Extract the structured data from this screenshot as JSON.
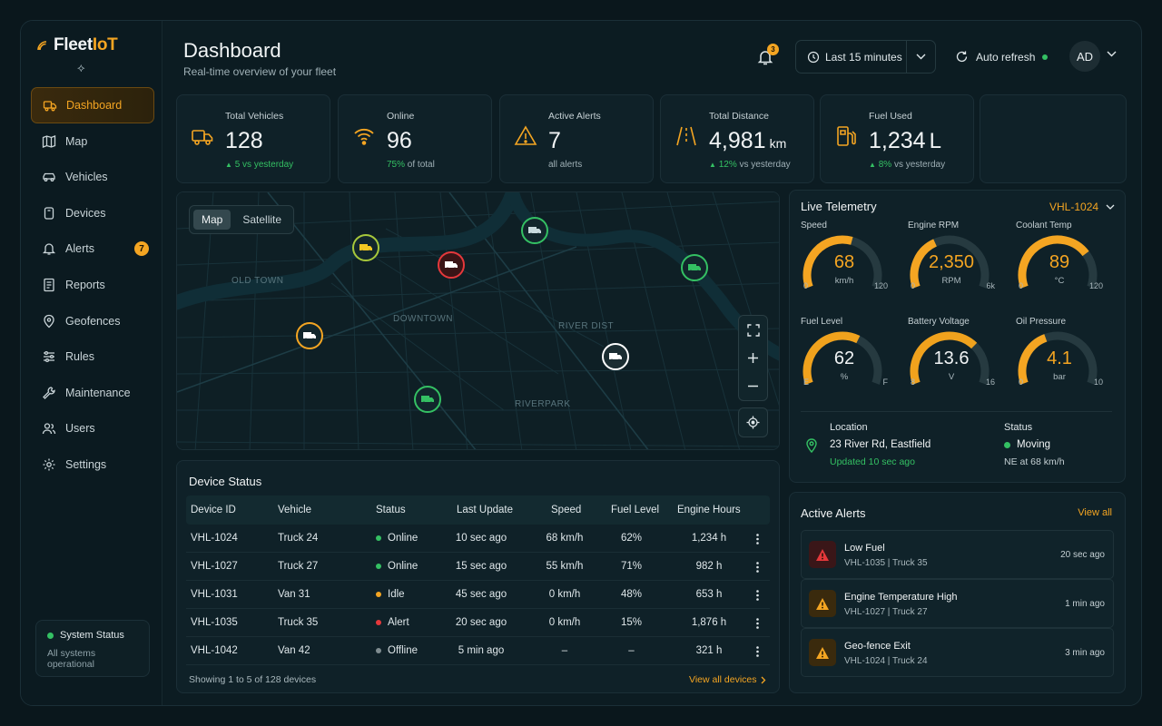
{
  "app": {
    "brand_prefix": "Fleet",
    "brand_suffix": "IoT",
    "brand_mark": "⟡"
  },
  "sidebar": {
    "items": [
      {
        "label": "Dashboard",
        "icon": "truck-icon",
        "active": true
      },
      {
        "label": "Map",
        "icon": "map-icon"
      },
      {
        "label": "Vehicles",
        "icon": "car-icon"
      },
      {
        "label": "Devices",
        "icon": "device-icon"
      },
      {
        "label": "Alerts",
        "icon": "bell-icon",
        "badge": "7"
      },
      {
        "label": "Reports",
        "icon": "report-icon"
      },
      {
        "label": "Geofences",
        "icon": "geofence-icon"
      },
      {
        "label": "Rules",
        "icon": "rules-icon"
      },
      {
        "label": "Maintenance",
        "icon": "wrench-icon"
      },
      {
        "label": "Users",
        "icon": "users-icon"
      },
      {
        "label": "Settings",
        "icon": "gear-icon"
      }
    ],
    "system_status": {
      "title": "System Status",
      "detail": "All systems operational"
    }
  },
  "header": {
    "title": "Dashboard",
    "subtitle": "Real-time overview of your fleet",
    "notifications": "3",
    "range": "Last 15 minutes",
    "auto_refresh": "Auto refresh",
    "user_initials": "AD"
  },
  "stats": [
    {
      "label": "Total Vehicles",
      "value": "128",
      "unit": "",
      "sub": "5 vs yesterday",
      "sub_arrow": "▲"
    },
    {
      "label": "Online",
      "value": "96",
      "unit": "",
      "sub_highlight": "75%",
      "sub": "of total"
    },
    {
      "label": "Active Alerts",
      "value": "7",
      "unit": "",
      "sub": "all alerts"
    },
    {
      "label": "Total Distance",
      "value": "4,981",
      "unit": "km",
      "sub_highlight": "12%",
      "sub": "vs yesterday",
      "sub_arrow": "▲"
    },
    {
      "label": "Fuel Used",
      "value": "1,234",
      "unit": "L",
      "sub_highlight": "8%",
      "sub": "vs yesterday",
      "sub_arrow": "▲"
    }
  ],
  "map": {
    "toggle": [
      "Map",
      "Satellite"
    ],
    "label_center": "DOWNTOWN",
    "label_right": "RIVER DIST",
    "label_bottom": "RIVERPARK",
    "label_left": "OLD TOWN"
  },
  "device_status": {
    "title": "Device Status",
    "columns": [
      "Device ID",
      "Vehicle",
      "Status",
      "Last Update",
      "Speed",
      "Fuel Level",
      "Engine Hours"
    ],
    "rows": [
      {
        "id": "VHL-1024",
        "vehicle": "Truck 24",
        "status": "Online",
        "status_color": "#34c063",
        "last": "10 sec ago",
        "speed": "68 km/h",
        "fuel": "62%",
        "hours": "1,234 h"
      },
      {
        "id": "VHL-1027",
        "vehicle": "Truck 27",
        "status": "Online",
        "status_color": "#34c063",
        "last": "15 sec ago",
        "speed": "55 km/h",
        "fuel": "71%",
        "hours": "982 h"
      },
      {
        "id": "VHL-1031",
        "vehicle": "Van 31",
        "status": "Idle",
        "status_color": "#f4a522",
        "last": "45 sec ago",
        "speed": "0 km/h",
        "fuel": "48%",
        "hours": "653 h"
      },
      {
        "id": "VHL-1035",
        "vehicle": "Truck 35",
        "status": "Alert",
        "status_color": "#e5383b",
        "last": "20 sec ago",
        "speed": "0 km/h",
        "fuel": "15%",
        "hours": "1,876 h"
      },
      {
        "id": "VHL-1042",
        "vehicle": "Van 42",
        "status": "Offline",
        "status_color": "#7f8c90",
        "last": "5 min ago",
        "speed": "–",
        "fuel": "–",
        "hours": "321 h"
      }
    ],
    "footer": "Showing 1 to 5 of 128 devices",
    "view_all": "View all devices"
  },
  "telemetry": {
    "title": "Live Telemetry",
    "vehicle": "VHL-1024",
    "gauges": [
      {
        "label": "Speed",
        "value": "68",
        "unit": "km/h",
        "min": "0",
        "max": "120",
        "fraction": 0.57,
        "amber": true
      },
      {
        "label": "Engine RPM",
        "value": "2,350",
        "unit": "RPM",
        "min": "0",
        "max": "6k",
        "fraction": 0.39,
        "amber": true
      },
      {
        "label": "Coolant Temp",
        "value": "89",
        "unit": "°C",
        "min": "0",
        "max": "120",
        "fraction": 0.74,
        "amber": true
      },
      {
        "label": "Fuel Level",
        "value": "62",
        "unit": "%",
        "min": "E",
        "max": "F",
        "fraction": 0.62,
        "amber": false
      },
      {
        "label": "Battery Voltage",
        "value": "13.6",
        "unit": "V",
        "min": "8",
        "max": "16",
        "fraction": 0.7,
        "amber": false
      },
      {
        "label": "Oil Pressure",
        "value": "4.1",
        "unit": "bar",
        "min": "0",
        "max": "10",
        "fraction": 0.41,
        "amber": true
      }
    ],
    "location_label": "Location",
    "location": "23 River Rd, Eastfield",
    "updated": "Updated 10 sec ago",
    "status_label": "Status",
    "status": "Moving",
    "heading": "NE at 68 km/h"
  },
  "alerts": {
    "title": "Active Alerts",
    "view_all": "View all",
    "items": [
      {
        "title": "Low Fuel",
        "sub": "VHL-1035 | Truck 35",
        "time": "20 sec ago",
        "severity": "critical",
        "color": "#e5383b"
      },
      {
        "title": "Engine Temperature High",
        "sub": "VHL-1027 | Truck 27",
        "time": "1 min ago",
        "severity": "warning",
        "color": "#f4a522"
      },
      {
        "title": "Geo-fence Exit",
        "sub": "VHL-1024 | Truck 24",
        "time": "3 min ago",
        "severity": "warning",
        "color": "#f4a522"
      }
    ]
  },
  "colors": {
    "accent": "#f4a522",
    "success": "#34c063",
    "danger": "#e5383b",
    "muted": "#7f8c90"
  }
}
